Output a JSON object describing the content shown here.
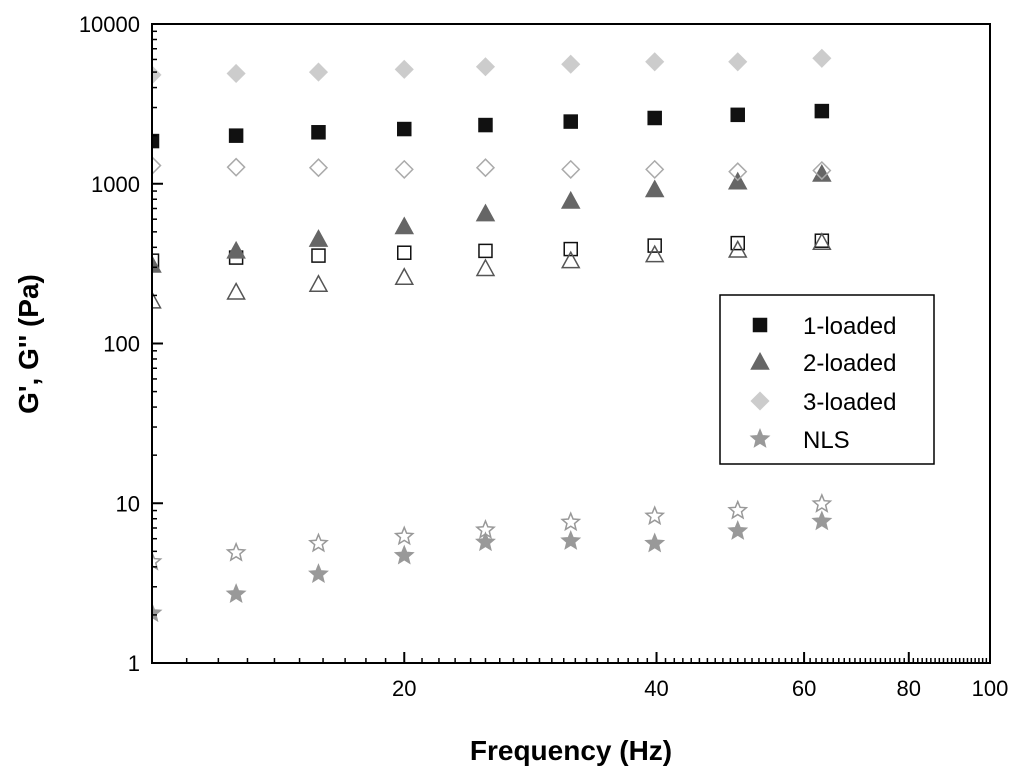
{
  "chart_data": {
    "type": "scatter",
    "xlabel": "Frequency (Hz)",
    "ylabel": "G', G'' (Pa)",
    "x_scale": "log",
    "y_scale": "log",
    "xlim": [
      10,
      100
    ],
    "ylim": [
      1,
      10000
    ],
    "x_tick_labels": [
      "20",
      "40",
      "60",
      "80",
      "100"
    ],
    "x_ticks": [
      20,
      40,
      60,
      80,
      100
    ],
    "y_tick_labels": [
      "1",
      "10",
      "100",
      "1000",
      "10000"
    ],
    "y_ticks": [
      1,
      10,
      100,
      1000,
      10000
    ],
    "grid": false,
    "legend_position": "right",
    "x": [
      10,
      12.6,
      15.8,
      20,
      25,
      31.6,
      39.8,
      50,
      63
    ],
    "series": [
      {
        "name": "1-loaded",
        "variable": "G'",
        "marker": "square",
        "filled": true,
        "color": "#111111",
        "values": [
          1850,
          2000,
          2100,
          2200,
          2330,
          2450,
          2580,
          2700,
          2850
        ]
      },
      {
        "name": "",
        "variable": "G''",
        "marker": "square",
        "filled": false,
        "color": "#111111",
        "values": [
          330,
          345,
          355,
          370,
          380,
          390,
          410,
          425,
          440
        ]
      },
      {
        "name": "2-loaded",
        "variable": "G'",
        "marker": "triangle",
        "filled": true,
        "color": "#666666",
        "values": [
          310,
          380,
          450,
          540,
          650,
          780,
          920,
          1030,
          1150
        ]
      },
      {
        "name": "",
        "variable": "G''",
        "marker": "triangle",
        "filled": false,
        "color": "#555555",
        "values": [
          185,
          210,
          235,
          260,
          295,
          330,
          360,
          385,
          430
        ]
      },
      {
        "name": "3-loaded",
        "variable": "G'",
        "marker": "diamond",
        "filled": true,
        "color": "#cccccc",
        "values": [
          4800,
          4900,
          5000,
          5200,
          5400,
          5600,
          5800,
          5800,
          6100
        ]
      },
      {
        "name": "",
        "variable": "G''",
        "marker": "diamond",
        "filled": false,
        "color": "#aaaaaa",
        "values": [
          1300,
          1270,
          1260,
          1230,
          1260,
          1230,
          1230,
          1190,
          1210
        ]
      },
      {
        "name": "NLS",
        "variable": "G'",
        "marker": "star",
        "filled": true,
        "color": "#999999",
        "values": [
          2.05,
          2.7,
          3.6,
          4.7,
          5.7,
          5.8,
          5.6,
          6.7,
          7.7
        ]
      },
      {
        "name": "",
        "variable": "G''",
        "marker": "star",
        "filled": false,
        "color": "#999999",
        "values": [
          4.3,
          4.9,
          5.6,
          6.2,
          6.8,
          7.6,
          8.3,
          9.0,
          9.9
        ]
      }
    ],
    "legend": [
      {
        "label": "1-loaded",
        "marker": "square",
        "color": "#111111"
      },
      {
        "label": "2-loaded",
        "marker": "triangle",
        "color": "#666666"
      },
      {
        "label": "3-loaded",
        "marker": "diamond",
        "color": "#cccccc"
      },
      {
        "label": "NLS",
        "marker": "star",
        "color": "#999999"
      }
    ]
  }
}
